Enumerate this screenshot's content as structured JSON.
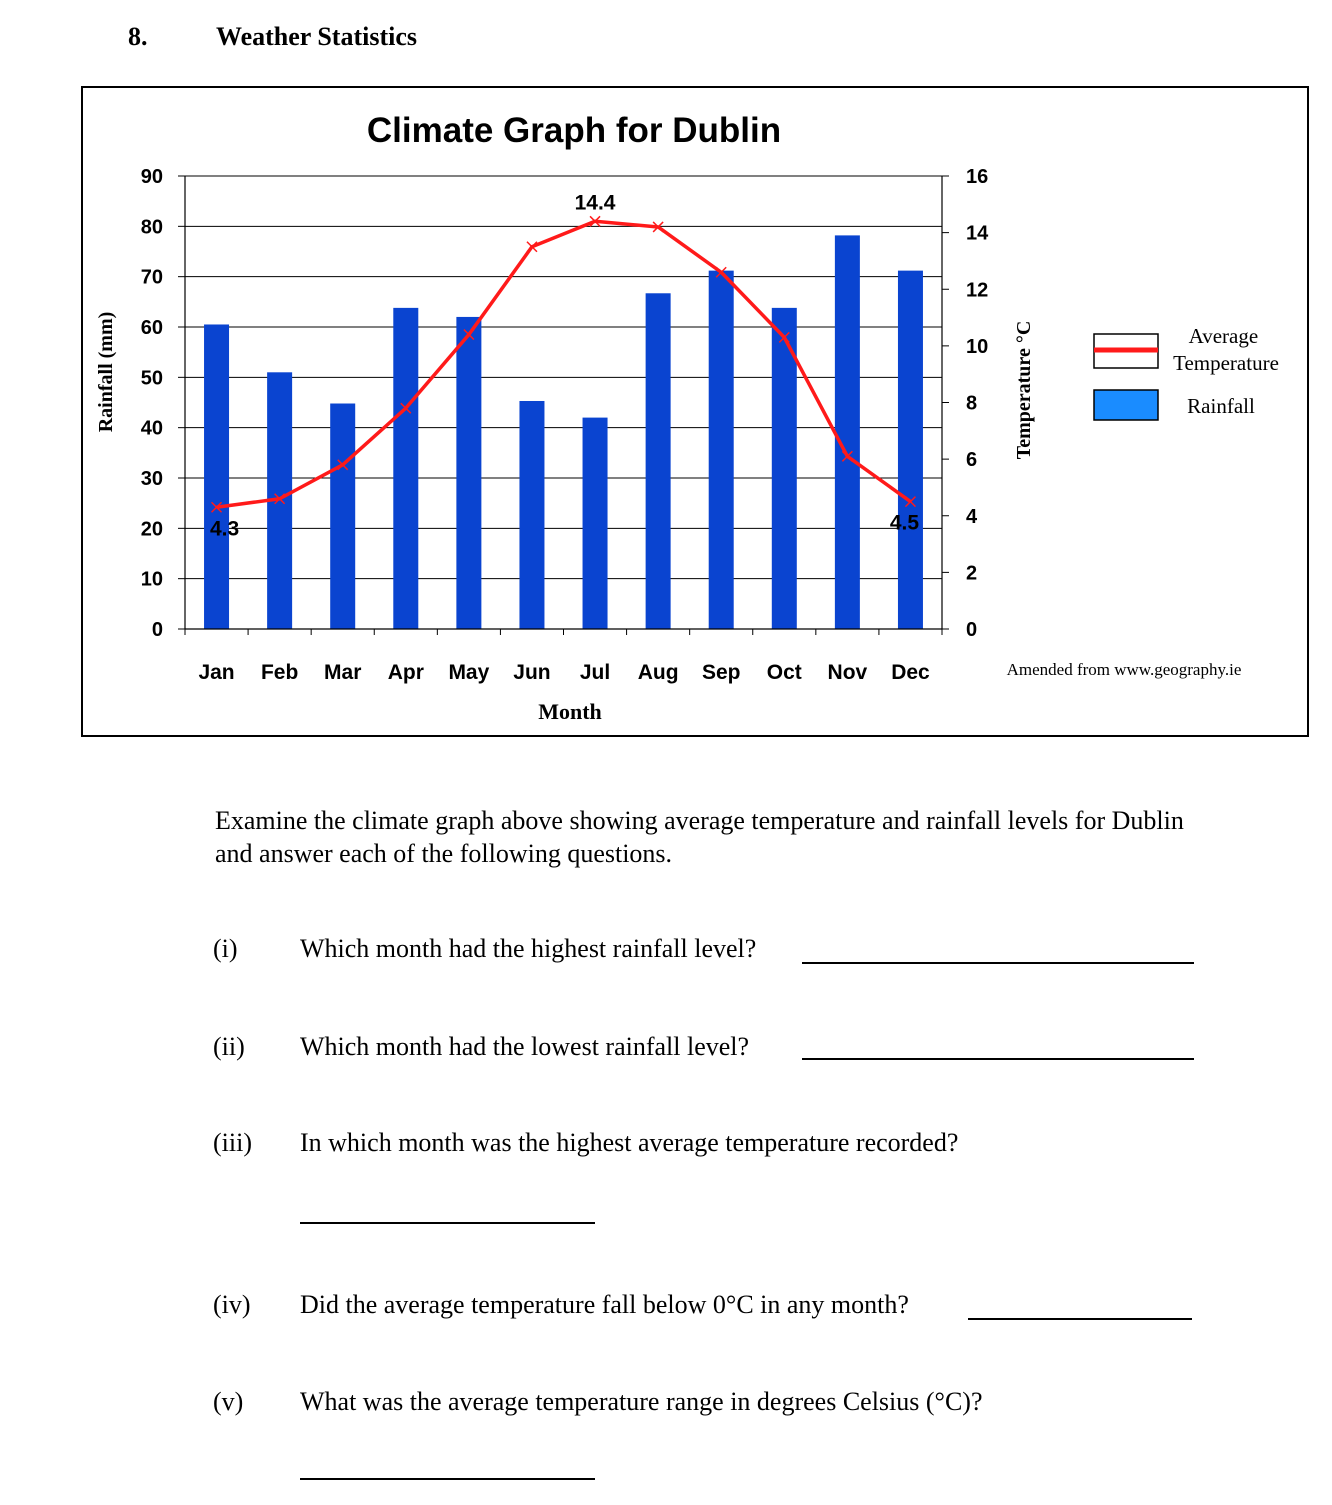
{
  "question": {
    "number": "8.",
    "title": "Weather Statistics"
  },
  "chart_data": {
    "type": "bar+line",
    "title": "Climate Graph for Dublin",
    "xlabel": "Month",
    "ylabel_left": "Rainfall (mm)",
    "ylabel_right": "Temperature °C",
    "categories": [
      "Jan",
      "Feb",
      "Mar",
      "Apr",
      "May",
      "Jun",
      "Jul",
      "Aug",
      "Sep",
      "Oct",
      "Nov",
      "Dec"
    ],
    "ylim_left": [
      0,
      90
    ],
    "yticks_left": [
      "0",
      "10",
      "20",
      "30",
      "40",
      "50",
      "60",
      "70",
      "80",
      "90"
    ],
    "ylim_right": [
      0,
      16
    ],
    "yticks_right": [
      "0",
      "2",
      "4",
      "6",
      "8",
      "10",
      "12",
      "14",
      "16"
    ],
    "grid": true,
    "legend_position": "right",
    "series": [
      {
        "name": "Rainfall",
        "kind": "bar",
        "axis": "left",
        "color": "#0a44d0",
        "values": [
          60.5,
          51,
          44.8,
          63.8,
          62,
          45.3,
          42,
          66.7,
          71.2,
          63.8,
          78.2,
          71.2
        ]
      },
      {
        "name": "Average Temperature",
        "kind": "line",
        "axis": "right",
        "color": "#ff1a1a",
        "values": [
          4.3,
          4.6,
          5.8,
          7.8,
          10.4,
          13.5,
          14.4,
          14.2,
          12.6,
          10.3,
          6.1,
          4.5
        ]
      }
    ],
    "data_labels": [
      {
        "series": "Average Temperature",
        "category": "Jan",
        "text": "4.3"
      },
      {
        "series": "Average Temperature",
        "category": "Jul",
        "text": "14.4"
      },
      {
        "series": "Average Temperature",
        "category": "Dec",
        "text": "4.5"
      }
    ],
    "legend": [
      "Average Temperature",
      "Rainfall"
    ],
    "legend_temp_lines": [
      "Average",
      "Temperature"
    ],
    "source_note": "Amended from www.geography.ie"
  },
  "intro": "Examine the climate graph above showing average temperature and rainfall levels for Dublin and answer each of the following questions.",
  "questions": [
    {
      "label": "(i)",
      "text": "Which month had the highest rainfall level?"
    },
    {
      "label": "(ii)",
      "text": "Which month had the lowest rainfall level?"
    },
    {
      "label": "(iii)",
      "text": "In which month was the highest average temperature recorded?"
    },
    {
      "label": "(iv)",
      "text": "Did the average temperature fall below 0°C in any month?"
    },
    {
      "label": "(v)",
      "text": "What was the average temperature range in degrees Celsius (°C)?"
    }
  ]
}
